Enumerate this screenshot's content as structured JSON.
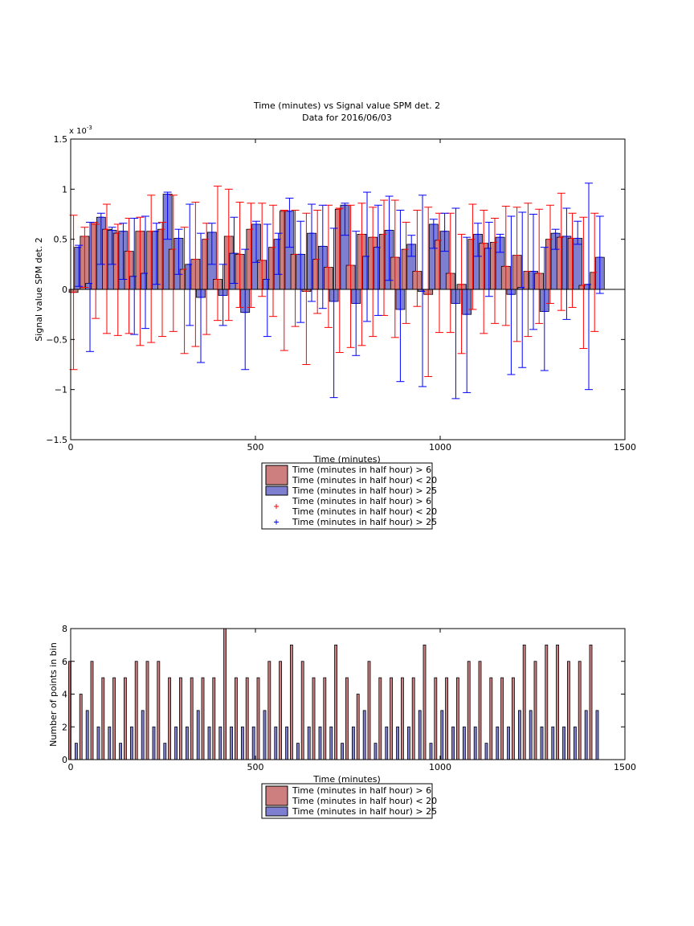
{
  "chart_data": [
    {
      "type": "bar",
      "title": "Time (minutes) vs Signal value SPM det. 2",
      "subtitle": "Data for 2016/06/03",
      "xlabel": "Time (minutes)",
      "ylabel": "Signal value SPM det. 2",
      "exponent_label": "x 10",
      "exponent_power": "-3",
      "xlim": [
        0,
        1500
      ],
      "ylim": [
        -1.5,
        1.5
      ],
      "xticks": [
        0,
        500,
        1000,
        1500
      ],
      "xtick_labels": [
        "0",
        "500",
        "1000",
        "1500"
      ],
      "yticks": [
        -1.5,
        -1,
        -0.5,
        0,
        0.5,
        1,
        1.5
      ],
      "ytick_labels": [
        "−1.5",
        "−1",
        "−0.5",
        "0",
        "0.5",
        "1",
        "1.5"
      ],
      "grid": false,
      "legend_position": "below-axes",
      "legend": [
        {
          "lines": [
            "Time (minutes in half hour) > 6",
            "Time (minutes in half hour) < 20"
          ],
          "kind": "patch",
          "color": "#cd7f7f"
        },
        {
          "lines": [
            "Time (minutes in half hour) > 25"
          ],
          "kind": "patch",
          "color": "#7f7fd2"
        },
        {
          "lines": [
            "Time (minutes in half hour) > 6",
            "Time (minutes in half hour) < 20"
          ],
          "kind": "marker",
          "color": "#ff0000"
        },
        {
          "lines": [
            "Time (minutes in half hour) > 25"
          ],
          "kind": "marker",
          "color": "#0000ff"
        }
      ],
      "series": [
        {
          "name": "Time (minutes in half hour) > 6 / < 20",
          "color": "#cd7f7f",
          "error_color": "#ff0000",
          "x": [
            15,
            45,
            75,
            105,
            135,
            165,
            195,
            225,
            255,
            285,
            315,
            345,
            375,
            405,
            435,
            465,
            495,
            525,
            555,
            585,
            615,
            645,
            675,
            705,
            735,
            765,
            795,
            825,
            855,
            885,
            915,
            945,
            975,
            1005,
            1035,
            1065,
            1095,
            1125,
            1155,
            1185,
            1215,
            1245,
            1275,
            1305,
            1335,
            1365,
            1395,
            1425
          ],
          "values": [
            -0.03,
            0.53,
            0.67,
            0.6,
            0.56,
            0.38,
            0.58,
            0.58,
            0.6,
            0.4,
            0.2,
            0.3,
            0.5,
            0.1,
            0.53,
            0.35,
            0.6,
            0.29,
            0.42,
            0.78,
            0.35,
            -0.02,
            0.3,
            0.22,
            0.8,
            0.24,
            0.55,
            0.52,
            0.55,
            0.32,
            0.4,
            0.18,
            -0.05,
            0.49,
            0.16,
            0.05,
            0.5,
            0.46,
            0.47,
            0.23,
            0.34,
            0.18,
            0.16,
            0.5,
            0.52,
            0.51,
            0.04,
            0.17
          ],
          "err_low": [
            -0.8,
            0.02,
            -0.29,
            -0.44,
            -0.46,
            -0.44,
            -0.56,
            -0.53,
            -0.47,
            -0.42,
            -0.64,
            -0.57,
            -0.45,
            -0.31,
            -0.31,
            -0.18,
            -0.18,
            -0.07,
            -0.27,
            -0.61,
            -0.37,
            -0.75,
            -0.24,
            -0.38,
            -0.63,
            -0.58,
            -0.56,
            -0.47,
            -0.26,
            -0.48,
            -0.34,
            -0.17,
            -0.87,
            -0.43,
            -0.43,
            -0.64,
            -0.2,
            -0.44,
            -0.34,
            -0.36,
            -0.52,
            -0.47,
            -0.34,
            -0.14,
            -0.21,
            -0.18,
            -0.59,
            -0.42
          ],
          "err_high": [
            0.74,
            0.62,
            0.65,
            0.85,
            0.65,
            0.71,
            0.72,
            0.94,
            0.67,
            0.94,
            0.62,
            0.87,
            0.66,
            1.03,
            1.0,
            0.87,
            0.86,
            0.86,
            0.84,
            0.79,
            0.79,
            0.76,
            0.79,
            0.84,
            0.81,
            0.84,
            0.86,
            0.82,
            0.89,
            0.89,
            0.67,
            0.79,
            0.82,
            0.76,
            0.76,
            0.55,
            0.85,
            0.79,
            0.71,
            0.83,
            0.82,
            0.86,
            0.8,
            0.84,
            0.96,
            0.76,
            0.72,
            0.76
          ]
        },
        {
          "name": "Time (minutes in half hour) > 25",
          "color": "#7f7fd2",
          "error_color": "#0000ff",
          "x": [
            15,
            45,
            75,
            105,
            135,
            165,
            195,
            225,
            255,
            285,
            315,
            345,
            375,
            405,
            435,
            465,
            495,
            525,
            555,
            585,
            615,
            645,
            675,
            705,
            735,
            765,
            795,
            825,
            855,
            885,
            915,
            945,
            975,
            1005,
            1035,
            1065,
            1095,
            1125,
            1155,
            1185,
            1215,
            1245,
            1275,
            1305,
            1335,
            1365,
            1395,
            1425
          ],
          "values": [
            0.42,
            0.06,
            0.72,
            0.59,
            0.58,
            0.13,
            0.16,
            0.58,
            0.95,
            0.51,
            0.25,
            -0.08,
            0.57,
            -0.06,
            0.36,
            -0.23,
            0.65,
            0.1,
            0.5,
            0.78,
            0.35,
            0.56,
            0.43,
            -0.12,
            0.84,
            -0.14,
            0.33,
            0.42,
            0.59,
            -0.2,
            0.45,
            -0.02,
            0.65,
            0.58,
            -0.14,
            -0.25,
            0.55,
            0.41,
            0.52,
            -0.05,
            0.02,
            0.18,
            -0.22,
            0.56,
            0.53,
            0.51,
            0.05,
            0.32
          ],
          "err_low": [
            0.03,
            -0.62,
            0.25,
            0.25,
            0.1,
            -0.45,
            -0.39,
            0.05,
            0.5,
            0.15,
            -0.36,
            -0.73,
            0.25,
            -0.36,
            0.06,
            -0.8,
            0.27,
            -0.47,
            0.15,
            0.42,
            -0.33,
            -0.12,
            -0.19,
            -1.08,
            0.54,
            -0.66,
            -0.32,
            -0.26,
            0.09,
            -0.92,
            0.33,
            -0.97,
            0.41,
            0.38,
            -1.09,
            -1.03,
            0.33,
            -0.07,
            0.37,
            -0.85,
            -0.78,
            -0.4,
            -0.81,
            0.4,
            -0.3,
            0.45,
            -1.0,
            -0.04
          ],
          "err_high": [
            0.44,
            0.67,
            0.76,
            0.62,
            0.66,
            0.71,
            0.73,
            0.66,
            0.97,
            0.6,
            0.85,
            0.56,
            0.66,
            0.25,
            0.72,
            0.4,
            0.68,
            0.65,
            0.56,
            0.91,
            0.68,
            0.85,
            0.84,
            0.61,
            0.86,
            0.58,
            0.97,
            0.84,
            0.93,
            0.79,
            0.54,
            0.94,
            0.7,
            0.76,
            0.81,
            0.52,
            0.66,
            0.67,
            0.55,
            0.73,
            0.77,
            0.75,
            0.42,
            0.6,
            0.81,
            0.68,
            1.06,
            0.73
          ]
        }
      ]
    },
    {
      "type": "bar",
      "xlabel": "Time (minutes)",
      "ylabel": "Number of points in bin",
      "xlim": [
        0,
        1500
      ],
      "ylim": [
        0,
        8
      ],
      "xticks": [
        0,
        500,
        1000,
        1500
      ],
      "xtick_labels": [
        "0",
        "500",
        "1000",
        "1500"
      ],
      "yticks": [
        0,
        2,
        4,
        6,
        8
      ],
      "ytick_labels": [
        "0",
        "2",
        "4",
        "6",
        "8"
      ],
      "grid": false,
      "legend_position": "below-axes",
      "legend": [
        {
          "lines": [
            "Time (minutes in half hour) > 6",
            "Time (minutes in half hour) < 20"
          ],
          "kind": "patch",
          "color": "#cd7f7f"
        },
        {
          "lines": [
            "Time (minutes in half hour) > 25"
          ],
          "kind": "patch",
          "color": "#7f7fd2"
        }
      ],
      "series": [
        {
          "name": "Time (minutes in half hour) > 6 / < 20",
          "color": "#cd7f7f",
          "x": [
            15,
            45,
            75,
            105,
            135,
            165,
            195,
            225,
            255,
            285,
            315,
            345,
            375,
            405,
            435,
            465,
            495,
            525,
            555,
            585,
            615,
            645,
            675,
            705,
            735,
            765,
            795,
            825,
            855,
            885,
            915,
            945,
            975,
            1005,
            1035,
            1065,
            1095,
            1125,
            1155,
            1185,
            1215,
            1245,
            1275,
            1305,
            1335,
            1365,
            1395,
            1425
          ],
          "values": [
            6,
            4,
            6,
            5,
            5,
            5,
            6,
            6,
            6,
            5,
            5,
            5,
            5,
            5,
            8,
            5,
            5,
            5,
            6,
            6,
            7,
            6,
            5,
            5,
            7,
            5,
            4,
            6,
            5,
            5,
            5,
            5,
            7,
            5,
            5,
            5,
            6,
            6,
            5,
            5,
            5,
            7,
            6,
            7,
            7,
            6,
            6,
            7
          ]
        },
        {
          "name": "Time (minutes in half hour) > 25",
          "color": "#7f7fd2",
          "x": [
            15,
            45,
            75,
            105,
            135,
            165,
            195,
            225,
            255,
            285,
            315,
            345,
            375,
            405,
            435,
            465,
            495,
            525,
            555,
            585,
            615,
            645,
            675,
            705,
            735,
            765,
            795,
            825,
            855,
            885,
            915,
            945,
            975,
            1005,
            1035,
            1065,
            1095,
            1125,
            1155,
            1185,
            1215,
            1245,
            1275,
            1305,
            1335,
            1365,
            1395,
            1425
          ],
          "values": [
            1,
            3,
            2,
            2,
            1,
            2,
            3,
            2,
            1,
            2,
            2,
            3,
            2,
            2,
            2,
            2,
            2,
            3,
            2,
            2,
            1,
            2,
            2,
            2,
            1,
            2,
            3,
            1,
            2,
            2,
            2,
            3,
            1,
            3,
            2,
            2,
            2,
            1,
            2,
            2,
            3,
            3,
            2,
            2,
            2,
            2,
            3,
            3
          ]
        }
      ]
    }
  ]
}
